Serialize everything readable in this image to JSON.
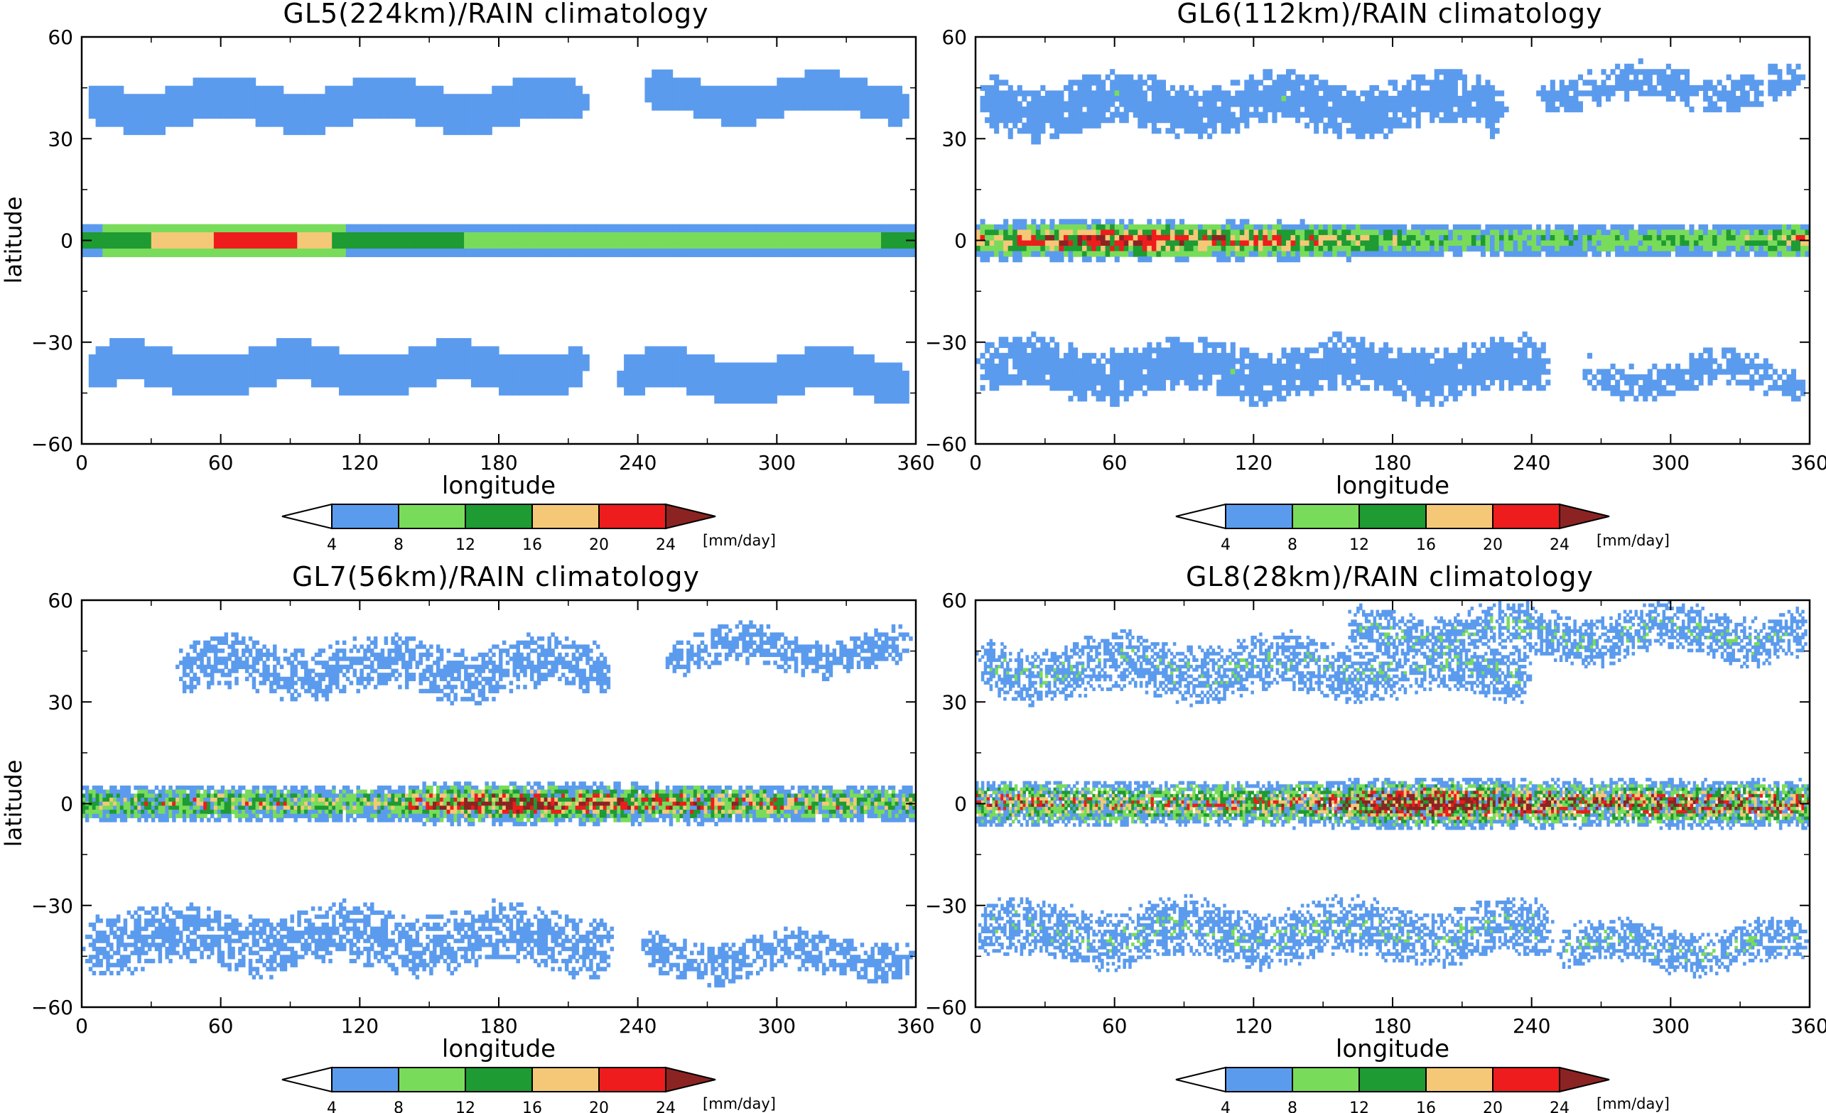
{
  "colors": {
    "below4": "#ffffff",
    "c4_8": "#5b9bee",
    "c8_12": "#78dc5a",
    "c12_16": "#1e9b32",
    "c16_20": "#f5c878",
    "c20_24": "#ee1c1c",
    "above24": "#8c2323",
    "axis": "#000000"
  },
  "colorbar": {
    "ticks": [
      "4",
      "8",
      "12",
      "16",
      "20",
      "24"
    ],
    "unit": "[mm/day]"
  },
  "chart_data": [
    {
      "type": "heatmap",
      "title": "GL5(224km)/RAIN climatology",
      "xlabel": "longitude",
      "ylabel": "latitude",
      "xlim": [
        0,
        360
      ],
      "ylim": [
        -60,
        60
      ],
      "xticks": [
        "0",
        "60",
        "120",
        "180",
        "240",
        "300",
        "360"
      ],
      "yticks": [
        "60",
        "30",
        "0",
        "-30",
        "-60"
      ],
      "levels": [
        4,
        8,
        12,
        16,
        20,
        24
      ],
      "resolution_km": 224,
      "roughness": 0.0,
      "fields": {
        "storm_tracks": [
          {
            "lat_mid": 40,
            "lon_range": [
              0,
              220
            ],
            "half_width": 7,
            "value": 6
          },
          {
            "lat_mid": 42,
            "lon_range": [
              240,
              360
            ],
            "half_width": 6,
            "value": 6
          },
          {
            "lat_mid": -38,
            "lon_range": [
              0,
              220
            ],
            "half_width": 7,
            "value": 6
          },
          {
            "lat_mid": -40,
            "lon_range": [
              230,
              360
            ],
            "half_width": 7,
            "value": 6
          }
        ],
        "itcz": {
          "lat_mid": 0,
          "half_width": 5,
          "peak_by_lon": [
            [
              0,
              15
            ],
            [
              30,
              17
            ],
            [
              60,
              22
            ],
            [
              90,
              22
            ],
            [
              120,
              14
            ],
            [
              150,
              14
            ],
            [
              180,
              12
            ],
            [
              210,
              9
            ],
            [
              240,
              9
            ],
            [
              270,
              10
            ],
            [
              300,
              10
            ],
            [
              330,
              11
            ],
            [
              360,
              15
            ]
          ]
        }
      }
    },
    {
      "type": "heatmap",
      "title": "GL6(112km)/RAIN climatology",
      "xlabel": "longitude",
      "ylabel": "latitude",
      "xlim": [
        0,
        360
      ],
      "ylim": [
        -60,
        60
      ],
      "xticks": [
        "0",
        "60",
        "120",
        "180",
        "240",
        "300",
        "360"
      ],
      "yticks": [
        "60",
        "30",
        "0",
        "-30",
        "-60"
      ],
      "levels": [
        4,
        8,
        12,
        16,
        20,
        24
      ],
      "resolution_km": 112,
      "roughness": 0.35,
      "fields": {
        "storm_tracks": [
          {
            "lat_mid": 40,
            "lon_range": [
              0,
              230
            ],
            "half_width": 8,
            "value": 6
          },
          {
            "lat_mid": 45,
            "lon_range": [
              240,
              360
            ],
            "half_width": 6,
            "value": 5
          },
          {
            "lat_mid": -38,
            "lon_range": [
              0,
              250
            ],
            "half_width": 8,
            "value": 6
          },
          {
            "lat_mid": -40,
            "lon_range": [
              260,
              360
            ],
            "half_width": 6,
            "value": 5
          }
        ],
        "itcz": {
          "lat_mid": 0,
          "half_width": 5,
          "peak_by_lon": [
            [
              0,
              16
            ],
            [
              30,
              20
            ],
            [
              60,
              22
            ],
            [
              90,
              20
            ],
            [
              120,
              18
            ],
            [
              150,
              16
            ],
            [
              180,
              13
            ],
            [
              210,
              10
            ],
            [
              240,
              10
            ],
            [
              270,
              11
            ],
            [
              300,
              12
            ],
            [
              330,
              12
            ],
            [
              360,
              18
            ]
          ]
        }
      }
    },
    {
      "type": "heatmap",
      "title": "GL7(56km)/RAIN climatology",
      "xlabel": "longitude",
      "ylabel": "latitude",
      "xlim": [
        0,
        360
      ],
      "ylim": [
        -60,
        60
      ],
      "xticks": [
        "0",
        "60",
        "120",
        "180",
        "240",
        "300",
        "360"
      ],
      "yticks": [
        "60",
        "30",
        "0",
        "-30",
        "-60"
      ],
      "levels": [
        4,
        8,
        12,
        16,
        20,
        24
      ],
      "resolution_km": 56,
      "roughness": 0.6,
      "fields": {
        "storm_tracks": [
          {
            "lat_mid": 40,
            "lon_range": [
              40,
              230
            ],
            "half_width": 8,
            "value": 5
          },
          {
            "lat_mid": 45,
            "lon_range": [
              250,
              360
            ],
            "half_width": 6,
            "value": 5
          },
          {
            "lat_mid": -40,
            "lon_range": [
              0,
              230
            ],
            "half_width": 9,
            "value": 5
          },
          {
            "lat_mid": -45,
            "lon_range": [
              240,
              360
            ],
            "half_width": 6,
            "value": 5
          }
        ],
        "itcz": {
          "lat_mid": 0,
          "half_width": 5,
          "peak_by_lon": [
            [
              0,
              13
            ],
            [
              30,
              13
            ],
            [
              60,
              14
            ],
            [
              90,
              13
            ],
            [
              120,
              12
            ],
            [
              150,
              18
            ],
            [
              180,
              22
            ],
            [
              210,
              20
            ],
            [
              240,
              19
            ],
            [
              270,
              17
            ],
            [
              300,
              15
            ],
            [
              330,
              14
            ],
            [
              360,
              13
            ]
          ]
        }
      }
    },
    {
      "type": "heatmap",
      "title": "GL8(28km)/RAIN climatology",
      "xlabel": "longitude",
      "ylabel": "latitude",
      "xlim": [
        0,
        360
      ],
      "ylim": [
        -60,
        60
      ],
      "xticks": [
        "0",
        "60",
        "120",
        "180",
        "240",
        "300",
        "360"
      ],
      "yticks": [
        "60",
        "30",
        "0",
        "-30",
        "-60"
      ],
      "levels": [
        4,
        8,
        12,
        16,
        20,
        24
      ],
      "resolution_km": 28,
      "roughness": 0.8,
      "fields": {
        "storm_tracks": [
          {
            "lat_mid": 40,
            "lon_range": [
              0,
              240
            ],
            "half_width": 8,
            "value": 5
          },
          {
            "lat_mid": 50,
            "lon_range": [
              160,
              360
            ],
            "half_width": 7,
            "value": 5
          },
          {
            "lat_mid": -38,
            "lon_range": [
              0,
              250
            ],
            "half_width": 8,
            "value": 5
          },
          {
            "lat_mid": -42,
            "lon_range": [
              250,
              360
            ],
            "half_width": 6,
            "value": 5
          }
        ],
        "itcz": {
          "lat_mid": 0,
          "half_width": 6,
          "peak_by_lon": [
            [
              0,
              15
            ],
            [
              30,
              14
            ],
            [
              60,
              13
            ],
            [
              90,
              13
            ],
            [
              120,
              13
            ],
            [
              150,
              15
            ],
            [
              180,
              22
            ],
            [
              210,
              22
            ],
            [
              240,
              18
            ],
            [
              270,
              16
            ],
            [
              300,
              17
            ],
            [
              330,
              17
            ],
            [
              360,
              15
            ]
          ]
        }
      }
    }
  ]
}
